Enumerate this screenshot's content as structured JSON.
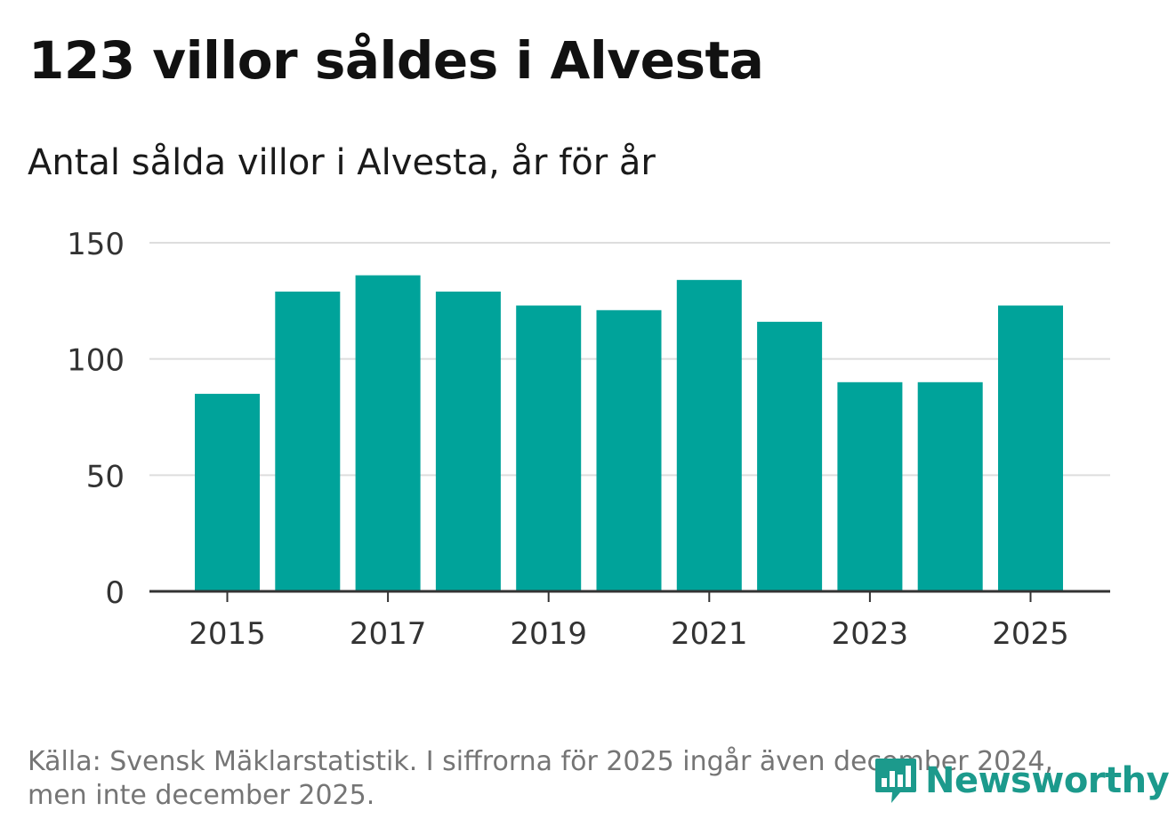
{
  "header": {
    "title": "123 villor såldes i Alvesta",
    "subtitle": "Antal sålda villor i Alvesta, år för år"
  },
  "footer": {
    "source_line1": "Källa: Svensk Mäklarstatistik. I siffrorna för 2025 ingår även december 2024,",
    "source_line2": "men inte december 2025."
  },
  "brand": {
    "name": "Newsworthy",
    "icon": "newsworthy-logo-icon",
    "color": "#1c9a8c"
  },
  "colors": {
    "bar": "#00a39a",
    "grid": "#dddddd",
    "axis": "#333333"
  },
  "chart_data": {
    "type": "bar",
    "title": "Antal sålda villor i Alvesta, år för år",
    "xlabel": "",
    "ylabel": "",
    "categories": [
      "2015",
      "2016",
      "2017",
      "2018",
      "2019",
      "2020",
      "2021",
      "2022",
      "2023",
      "2024",
      "2025"
    ],
    "values": [
      85,
      129,
      136,
      129,
      123,
      121,
      134,
      116,
      90,
      90,
      123
    ],
    "x_tick_labels": [
      "2015",
      "2017",
      "2019",
      "2021",
      "2023",
      "2025"
    ],
    "y_ticks": [
      0,
      50,
      100,
      150
    ],
    "ylim": [
      0,
      150
    ],
    "grid": true
  }
}
